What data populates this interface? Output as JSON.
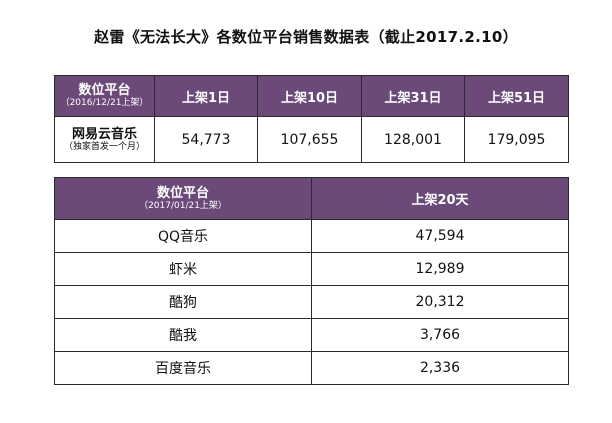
{
  "title": "赵雷《无法长大》各数位平台销售数据表（截止2017.2.10）",
  "table1": {
    "header": {
      "platform_label": "数位平台",
      "platform_date": "（2016/12/21上架）",
      "columns": [
        "上架1日",
        "上架10日",
        "上架31日",
        "上架51日"
      ]
    },
    "row": {
      "platform": "网易云音乐",
      "note": "（独家首发一个月）",
      "values": [
        "54,773",
        "107,655",
        "128,001",
        "179,095"
      ]
    }
  },
  "table2": {
    "header": {
      "platform_label": "数位平台",
      "platform_date": "（2017/01/21上架）",
      "column": "上架20天"
    },
    "rows": [
      {
        "platform": "QQ音乐",
        "value": "47,594"
      },
      {
        "platform": "虾米",
        "value": "12,989"
      },
      {
        "platform": "酷狗",
        "value": "20,312"
      },
      {
        "platform": "酷我",
        "value": "3,766"
      },
      {
        "platform": "百度音乐",
        "value": "2,336"
      }
    ]
  },
  "colors": {
    "header_bg": "#6b4a7a",
    "header_text": "#ffffff",
    "border": "#2a2a2a"
  }
}
